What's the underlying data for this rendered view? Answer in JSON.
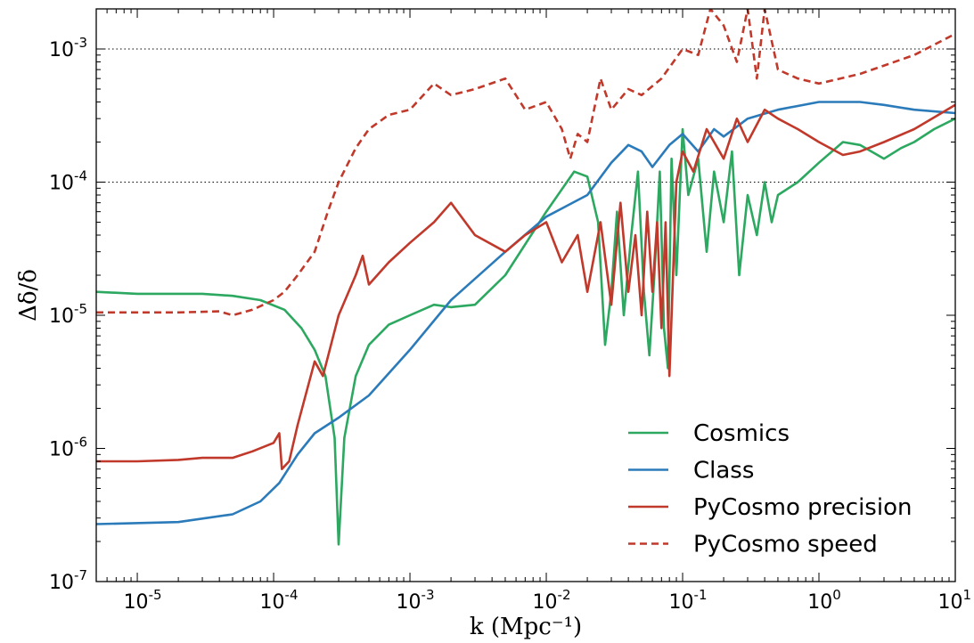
{
  "chart_data": {
    "type": "line",
    "title": "",
    "xlabel": "k (Mpc⁻¹)",
    "ylabel": "Δδ/δ",
    "x_scale": "log",
    "y_scale": "log",
    "xlim": [
      5e-06,
      10
    ],
    "ylim": [
      1e-07,
      0.002
    ],
    "x_ticks": [
      {
        "value": 1e-05,
        "base": "10",
        "exp": "-5"
      },
      {
        "value": 0.0001,
        "base": "10",
        "exp": "-4"
      },
      {
        "value": 0.001,
        "base": "10",
        "exp": "-3"
      },
      {
        "value": 0.01,
        "base": "10",
        "exp": "-2"
      },
      {
        "value": 0.1,
        "base": "10",
        "exp": "-1"
      },
      {
        "value": 1,
        "base": "10",
        "exp": "0"
      },
      {
        "value": 10,
        "base": "10",
        "exp": "1"
      }
    ],
    "y_ticks": [
      {
        "value": 1e-07,
        "base": "10",
        "exp": "-7"
      },
      {
        "value": 1e-06,
        "base": "10",
        "exp": "-6"
      },
      {
        "value": 1e-05,
        "base": "10",
        "exp": "-5"
      },
      {
        "value": 0.0001,
        "base": "10",
        "exp": "-4"
      },
      {
        "value": 0.001,
        "base": "10",
        "exp": "-3"
      }
    ],
    "hlines": [
      0.0001,
      0.001
    ],
    "legend_position": "lower-right",
    "series": [
      {
        "name": "Cosmics",
        "color": "#2ca861",
        "dash": false,
        "points": [
          [
            5e-06,
            1.5e-05
          ],
          [
            1e-05,
            1.45e-05
          ],
          [
            3e-05,
            1.45e-05
          ],
          [
            5e-05,
            1.4e-05
          ],
          [
            8e-05,
            1.3e-05
          ],
          [
            0.00012,
            1.1e-05
          ],
          [
            0.00016,
            8e-06
          ],
          [
            0.0002,
            5.5e-06
          ],
          [
            0.00024,
            3.5e-06
          ],
          [
            0.00028,
            1.2e-06
          ],
          [
            0.0003,
            1.9e-07
          ],
          [
            0.00033,
            1.2e-06
          ],
          [
            0.0004,
            3.5e-06
          ],
          [
            0.0005,
            6e-06
          ],
          [
            0.0007,
            8.5e-06
          ],
          [
            0.001,
            1e-05
          ],
          [
            0.0015,
            1.2e-05
          ],
          [
            0.002,
            1.15e-05
          ],
          [
            0.003,
            1.2e-05
          ],
          [
            0.005,
            2e-05
          ],
          [
            0.01,
            6e-05
          ],
          [
            0.016,
            0.00012
          ],
          [
            0.02,
            0.00011
          ],
          [
            0.024,
            5e-05
          ],
          [
            0.027,
            6e-06
          ],
          [
            0.03,
            1.5e-05
          ],
          [
            0.033,
            6e-05
          ],
          [
            0.037,
            1e-05
          ],
          [
            0.042,
            4e-05
          ],
          [
            0.047,
            0.00012
          ],
          [
            0.052,
            1.5e-05
          ],
          [
            0.057,
            5e-06
          ],
          [
            0.062,
            2e-05
          ],
          [
            0.068,
            0.00012
          ],
          [
            0.073,
            8e-06
          ],
          [
            0.078,
            4e-06
          ],
          [
            0.083,
            0.00015
          ],
          [
            0.09,
            2e-05
          ],
          [
            0.1,
            0.00025
          ],
          [
            0.11,
            8e-05
          ],
          [
            0.13,
            0.00015
          ],
          [
            0.15,
            3e-05
          ],
          [
            0.17,
            0.00012
          ],
          [
            0.2,
            5e-05
          ],
          [
            0.23,
            0.00017
          ],
          [
            0.26,
            2e-05
          ],
          [
            0.3,
            8e-05
          ],
          [
            0.35,
            4e-05
          ],
          [
            0.4,
            0.0001
          ],
          [
            0.45,
            5e-05
          ],
          [
            0.5,
            8e-05
          ],
          [
            0.7,
            0.0001
          ],
          [
            1,
            0.00014
          ],
          [
            1.5,
            0.0002
          ],
          [
            2,
            0.00019
          ],
          [
            3,
            0.00015
          ],
          [
            4,
            0.00018
          ],
          [
            5,
            0.0002
          ],
          [
            7,
            0.00025
          ],
          [
            10,
            0.0003
          ]
        ]
      },
      {
        "name": "Class",
        "color": "#2b7bba",
        "dash": false,
        "points": [
          [
            5e-06,
            2.7e-07
          ],
          [
            2e-05,
            2.8e-07
          ],
          [
            5e-05,
            3.2e-07
          ],
          [
            8e-05,
            4e-07
          ],
          [
            0.00011,
            5.5e-07
          ],
          [
            0.00015,
            9e-07
          ],
          [
            0.0002,
            1.3e-06
          ],
          [
            0.0003,
            1.7e-06
          ],
          [
            0.0005,
            2.5e-06
          ],
          [
            0.001,
            5.5e-06
          ],
          [
            0.002,
            1.3e-05
          ],
          [
            0.005,
            3e-05
          ],
          [
            0.01,
            5.5e-05
          ],
          [
            0.02,
            8e-05
          ],
          [
            0.03,
            0.00014
          ],
          [
            0.04,
            0.00019
          ],
          [
            0.05,
            0.00017
          ],
          [
            0.06,
            0.00013
          ],
          [
            0.08,
            0.00019
          ],
          [
            0.1,
            0.00023
          ],
          [
            0.13,
            0.00017
          ],
          [
            0.17,
            0.00025
          ],
          [
            0.2,
            0.00022
          ],
          [
            0.3,
            0.0003
          ],
          [
            0.5,
            0.00035
          ],
          [
            1,
            0.0004
          ],
          [
            2,
            0.0004
          ],
          [
            3,
            0.00038
          ],
          [
            5,
            0.00035
          ],
          [
            10,
            0.00033
          ]
        ]
      },
      {
        "name": "PyCosmo precision",
        "color": "#c0392b",
        "dash": false,
        "points": [
          [
            5e-06,
            8e-07
          ],
          [
            1e-05,
            8e-07
          ],
          [
            2e-05,
            8.2e-07
          ],
          [
            3e-05,
            8.5e-07
          ],
          [
            5e-05,
            8.5e-07
          ],
          [
            7e-05,
            9.5e-07
          ],
          [
            0.0001,
            1.1e-06
          ],
          [
            0.00011,
            1.3e-06
          ],
          [
            0.000115,
            7e-07
          ],
          [
            0.00013,
            8e-07
          ],
          [
            0.00015,
            1.5e-06
          ],
          [
            0.0002,
            4.5e-06
          ],
          [
            0.00023,
            3.5e-06
          ],
          [
            0.0003,
            1e-05
          ],
          [
            0.0004,
            2e-05
          ],
          [
            0.00045,
            2.8e-05
          ],
          [
            0.0005,
            1.7e-05
          ],
          [
            0.0007,
            2.5e-05
          ],
          [
            0.001,
            3.5e-05
          ],
          [
            0.0015,
            5e-05
          ],
          [
            0.002,
            7e-05
          ],
          [
            0.003,
            4e-05
          ],
          [
            0.005,
            3e-05
          ],
          [
            0.007,
            4e-05
          ],
          [
            0.01,
            5e-05
          ],
          [
            0.013,
            2.5e-05
          ],
          [
            0.017,
            4e-05
          ],
          [
            0.02,
            1.5e-05
          ],
          [
            0.025,
            5e-05
          ],
          [
            0.03,
            1.2e-05
          ],
          [
            0.035,
            7e-05
          ],
          [
            0.04,
            1.5e-05
          ],
          [
            0.045,
            4e-05
          ],
          [
            0.05,
            1e-05
          ],
          [
            0.055,
            6e-05
          ],
          [
            0.06,
            1.5e-05
          ],
          [
            0.065,
            5e-05
          ],
          [
            0.07,
            8e-06
          ],
          [
            0.075,
            5e-05
          ],
          [
            0.08,
            3.5e-06
          ],
          [
            0.09,
            0.0001
          ],
          [
            0.1,
            0.00017
          ],
          [
            0.12,
            0.00012
          ],
          [
            0.15,
            0.00025
          ],
          [
            0.2,
            0.00015
          ],
          [
            0.25,
            0.0003
          ],
          [
            0.3,
            0.0002
          ],
          [
            0.4,
            0.00035
          ],
          [
            0.5,
            0.0003
          ],
          [
            0.7,
            0.00025
          ],
          [
            1,
            0.0002
          ],
          [
            1.5,
            0.00016
          ],
          [
            2,
            0.00017
          ],
          [
            3,
            0.0002
          ],
          [
            5,
            0.00025
          ],
          [
            10,
            0.00038
          ]
        ]
      },
      {
        "name": "PyCosmo speed",
        "color": "#c0392b",
        "dash": true,
        "points": [
          [
            5e-06,
            1.05e-05
          ],
          [
            2e-05,
            1.05e-05
          ],
          [
            4e-05,
            1.07e-05
          ],
          [
            5e-05,
            1e-05
          ],
          [
            7e-05,
            1.1e-05
          ],
          [
            0.0001,
            1.3e-05
          ],
          [
            0.00012,
            1.5e-05
          ],
          [
            0.00015,
            2e-05
          ],
          [
            0.0002,
            3e-05
          ],
          [
            0.00025,
            6e-05
          ],
          [
            0.0003,
            0.0001
          ],
          [
            0.0004,
            0.00018
          ],
          [
            0.0005,
            0.00025
          ],
          [
            0.0007,
            0.00032
          ],
          [
            0.001,
            0.00035
          ],
          [
            0.0015,
            0.00055
          ],
          [
            0.002,
            0.00045
          ],
          [
            0.003,
            0.0005
          ],
          [
            0.005,
            0.0006
          ],
          [
            0.007,
            0.00035
          ],
          [
            0.01,
            0.0004
          ],
          [
            0.013,
            0.00025
          ],
          [
            0.015,
            0.00015
          ],
          [
            0.017,
            0.00023
          ],
          [
            0.02,
            0.0002
          ],
          [
            0.025,
            0.0006
          ],
          [
            0.03,
            0.00035
          ],
          [
            0.04,
            0.0005
          ],
          [
            0.05,
            0.00045
          ],
          [
            0.07,
            0.0006
          ],
          [
            0.1,
            0.001
          ],
          [
            0.13,
            0.0009
          ],
          [
            0.16,
            0.002
          ],
          [
            0.2,
            0.0015
          ],
          [
            0.25,
            0.0008
          ],
          [
            0.3,
            0.002
          ],
          [
            0.35,
            0.0006
          ],
          [
            0.4,
            0.002
          ],
          [
            0.5,
            0.0007
          ],
          [
            0.7,
            0.0006
          ],
          [
            1,
            0.00055
          ],
          [
            2,
            0.00065
          ],
          [
            5,
            0.0009
          ],
          [
            10,
            0.0013
          ]
        ]
      }
    ]
  }
}
